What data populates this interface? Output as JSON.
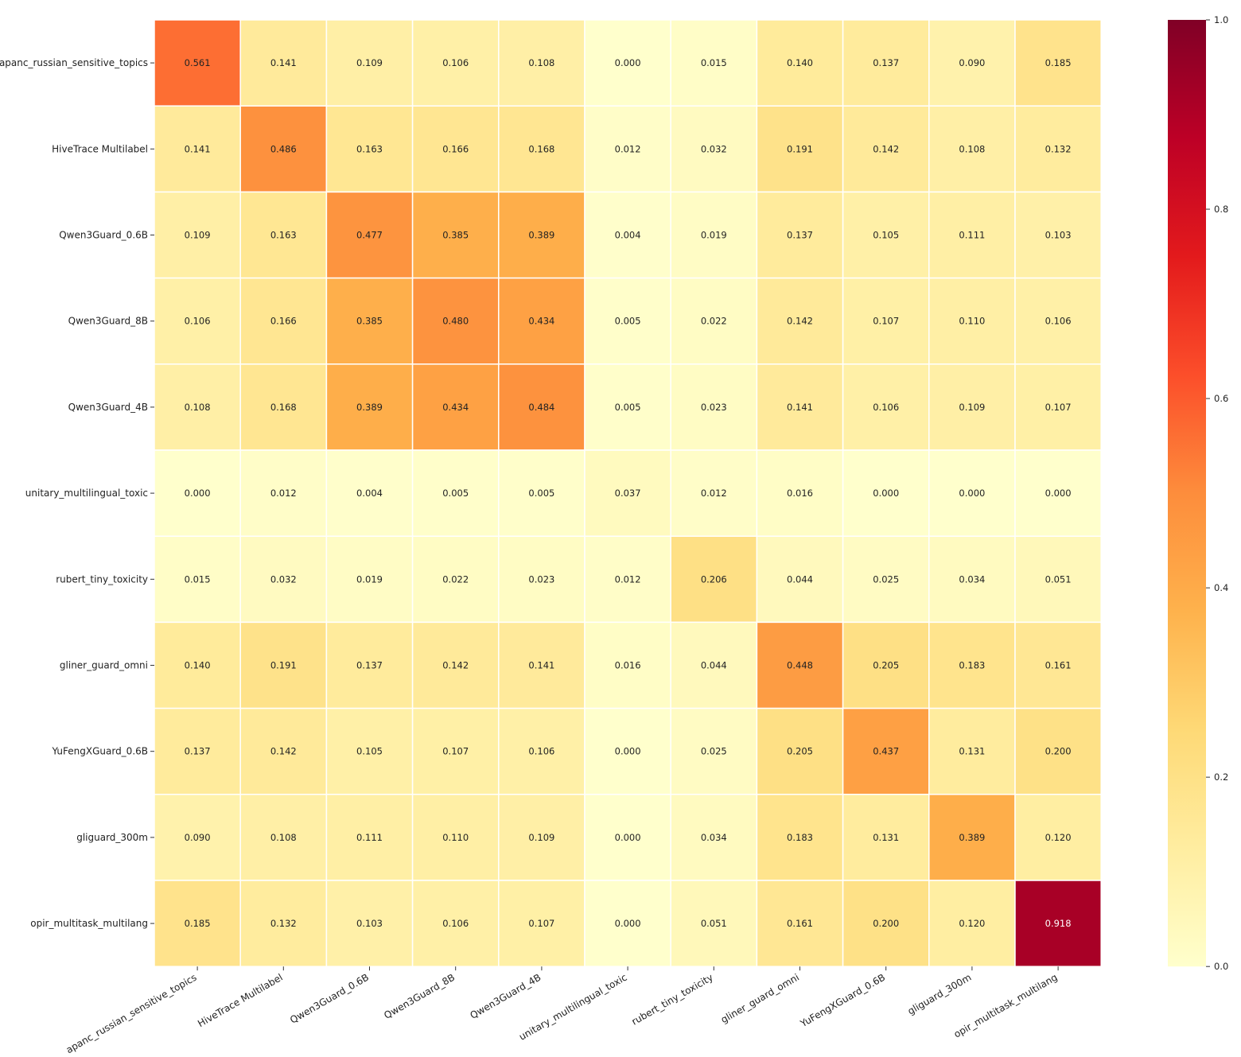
{
  "chart_data": {
    "type": "heatmap",
    "title": "",
    "xlabel": "",
    "ylabel": "",
    "row_labels": [
      "apanc_russian_sensitive_topics",
      "HiveTrace Multilabel",
      "Qwen3Guard_0.6B",
      "Qwen3Guard_8B",
      "Qwen3Guard_4B",
      "unitary_multilingual_toxic",
      "rubert_tiny_toxicity",
      "gliner_guard_omni",
      "YuFengXGuard_0.6B",
      "gliguard_300m",
      "opir_multitask_multilang"
    ],
    "col_labels": [
      "apanc_russian_sensitive_topics",
      "HiveTrace Multilabel",
      "Qwen3Guard_0.6B",
      "Qwen3Guard_8B",
      "Qwen3Guard_4B",
      "unitary_multilingual_toxic",
      "rubert_tiny_toxicity",
      "gliner_guard_omni",
      "YuFengXGuard_0.6B",
      "gliguard_300m",
      "opir_multitask_multilang"
    ],
    "values": [
      [
        0.561,
        0.141,
        0.109,
        0.106,
        0.108,
        0.0,
        0.015,
        0.14,
        0.137,
        0.09,
        0.185
      ],
      [
        0.141,
        0.486,
        0.163,
        0.166,
        0.168,
        0.012,
        0.032,
        0.191,
        0.142,
        0.108,
        0.132
      ],
      [
        0.109,
        0.163,
        0.477,
        0.385,
        0.389,
        0.004,
        0.019,
        0.137,
        0.105,
        0.111,
        0.103
      ],
      [
        0.106,
        0.166,
        0.385,
        0.48,
        0.434,
        0.005,
        0.022,
        0.142,
        0.107,
        0.11,
        0.106
      ],
      [
        0.108,
        0.168,
        0.389,
        0.434,
        0.484,
        0.005,
        0.023,
        0.141,
        0.106,
        0.109,
        0.107
      ],
      [
        0.0,
        0.012,
        0.004,
        0.005,
        0.005,
        0.037,
        0.012,
        0.016,
        0.0,
        0.0,
        0.0
      ],
      [
        0.015,
        0.032,
        0.019,
        0.022,
        0.023,
        0.012,
        0.206,
        0.044,
        0.025,
        0.034,
        0.051
      ],
      [
        0.14,
        0.191,
        0.137,
        0.142,
        0.141,
        0.016,
        0.044,
        0.448,
        0.205,
        0.183,
        0.161
      ],
      [
        0.137,
        0.142,
        0.105,
        0.107,
        0.106,
        0.0,
        0.025,
        0.205,
        0.437,
        0.131,
        0.2
      ],
      [
        0.09,
        0.108,
        0.111,
        0.11,
        0.109,
        0.0,
        0.034,
        0.183,
        0.131,
        0.389,
        0.12
      ],
      [
        0.185,
        0.132,
        0.103,
        0.106,
        0.107,
        0.0,
        0.051,
        0.161,
        0.2,
        0.12,
        0.918
      ]
    ],
    "value_format": "3 decimals",
    "colormap": "YlOrRd",
    "colormap_stops": [
      "#ffffcc",
      "#ffeda0",
      "#fed976",
      "#feb24c",
      "#fd8d3c",
      "#fc4e2a",
      "#e31a1c",
      "#bd0026",
      "#800026"
    ],
    "vmin": 0.0,
    "vmax": 1.0,
    "colorbar_ticks": [
      0.0,
      0.2,
      0.4,
      0.6,
      0.8,
      1.0
    ],
    "colorbar_tick_labels": [
      "0.0",
      "0.2",
      "0.4",
      "0.6",
      "0.8",
      "1.0"
    ],
    "colorbar_placement": "right",
    "cell_border_color": "#ffffff",
    "grid": false
  }
}
